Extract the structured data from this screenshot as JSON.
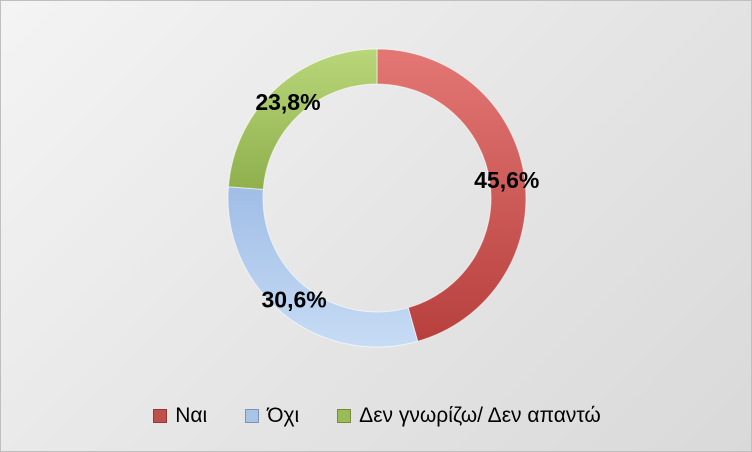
{
  "chart_data": {
    "type": "pie",
    "variant": "donut",
    "categories": [
      "Ναι",
      "Όχι",
      "Δεν γνωρίζω/ Δεν απαντώ"
    ],
    "values": [
      45.6,
      30.6,
      23.8
    ],
    "data_labels": [
      "45,6%",
      "30,6%",
      "23,8%"
    ],
    "colors": [
      "#c0504d",
      "#a8c4e8",
      "#9bbb59"
    ],
    "title": "",
    "legend_position": "bottom",
    "start_angle": "top-clockwise"
  }
}
